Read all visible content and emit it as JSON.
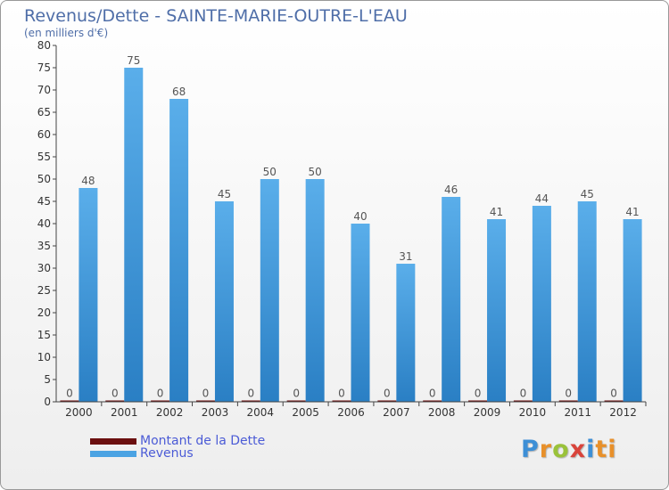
{
  "title": "Revenus/Dette - SAINTE-MARIE-OUTRE-L'EAU",
  "subtitle": "(en milliers d'€)",
  "colors": {
    "debt": "#6b0f0f",
    "revenue": "#4ba3e3",
    "revenue_dark": "#1f6fb3",
    "axis_text": "#333333",
    "label_text": "#555555",
    "legend_text": "#4b5bd6"
  },
  "legend": {
    "debt_label": "Montant de la Dette",
    "revenue_label": "Revenus"
  },
  "logo": {
    "text": "Proxiti",
    "letters": [
      "P",
      "r",
      "o",
      "x",
      "i",
      "ti"
    ]
  },
  "chart_data": {
    "type": "bar",
    "title": "Revenus/Dette - SAINTE-MARIE-OUTRE-L'EAU",
    "ylabel": "(en milliers d'€)",
    "xlabel": "",
    "ylim": [
      0,
      80
    ],
    "yticks": [
      0,
      5,
      10,
      15,
      20,
      25,
      30,
      35,
      40,
      45,
      50,
      55,
      60,
      65,
      70,
      75,
      80
    ],
    "grid": false,
    "legend_position": "bottom-left",
    "categories": [
      "2000",
      "2001",
      "2002",
      "2003",
      "2004",
      "2005",
      "2006",
      "2007",
      "2008",
      "2009",
      "2010",
      "2011",
      "2012"
    ],
    "series": [
      {
        "name": "Montant de la Dette",
        "values": [
          0,
          0,
          0,
          0,
          0,
          0,
          0,
          0,
          0,
          0,
          0,
          0,
          0
        ]
      },
      {
        "name": "Revenus",
        "values": [
          48,
          75,
          68,
          45,
          50,
          50,
          40,
          31,
          46,
          41,
          44,
          45,
          41
        ]
      }
    ]
  }
}
